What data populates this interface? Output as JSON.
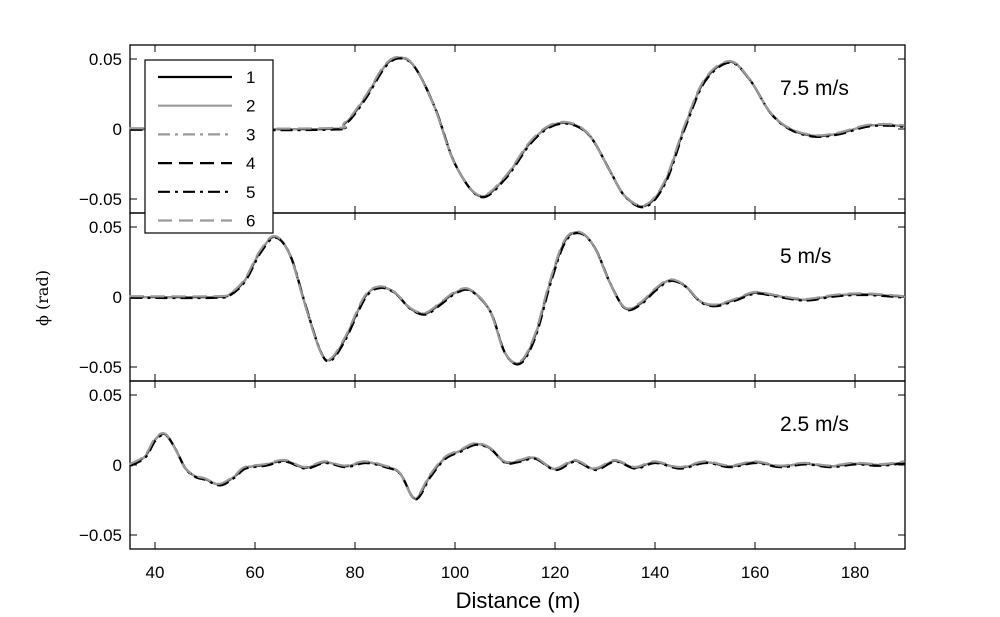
{
  "chart_data": {
    "type": "line",
    "xlabel": "Distance (m)",
    "ylabel": "ϕ (rad)",
    "xlim": [
      35,
      190
    ],
    "xticks": [
      40,
      60,
      80,
      100,
      120,
      140,
      160,
      180
    ],
    "ylim": [
      -0.06,
      0.06
    ],
    "yticks": [
      -0.05,
      0,
      0.05
    ],
    "ytick_labels": [
      "−0.05",
      "0",
      "0.05"
    ],
    "grid": false,
    "legend": {
      "placement": "top-left of top panel",
      "entries": [
        {
          "name": "1",
          "color": "#000000",
          "dash": "solid"
        },
        {
          "name": "2",
          "color": "#9a9a9a",
          "dash": "solid"
        },
        {
          "name": "3",
          "color": "#9a9a9a",
          "dash": "dashdot"
        },
        {
          "name": "4",
          "color": "#000000",
          "dash": "dashed"
        },
        {
          "name": "5",
          "color": "#000000",
          "dash": "dashdot"
        },
        {
          "name": "6",
          "color": "#9a9a9a",
          "dash": "dashed"
        }
      ]
    },
    "panels": [
      {
        "label": "7.5 m/s",
        "x": [
          35,
          74,
          78,
          82,
          86,
          89,
          92,
          96,
          100,
          105,
          110,
          115,
          119,
          123,
          127,
          131,
          134,
          138,
          142,
          146,
          150,
          155,
          159,
          163,
          167,
          172,
          177,
          182,
          186,
          190
        ],
        "y": [
          0,
          0,
          0.004,
          0.022,
          0.045,
          0.051,
          0.044,
          0.015,
          -0.025,
          -0.048,
          -0.035,
          -0.01,
          0.002,
          0.004,
          -0.005,
          -0.03,
          -0.048,
          -0.055,
          -0.038,
          0.002,
          0.035,
          0.048,
          0.035,
          0.012,
          0.0,
          -0.005,
          -0.003,
          0.002,
          0.003,
          0.002
        ]
      },
      {
        "label": "5 m/s",
        "x": [
          35,
          52,
          55,
          58,
          61,
          64,
          67,
          70,
          73,
          75,
          78,
          82,
          85,
          88,
          91,
          94,
          97,
          100,
          103,
          107,
          110,
          113,
          116,
          119,
          122,
          125,
          128,
          131,
          134,
          137,
          140,
          143,
          146,
          149,
          152,
          156,
          160,
          164,
          170,
          176,
          182,
          190
        ],
        "y": [
          0,
          0,
          0.002,
          0.012,
          0.032,
          0.043,
          0.03,
          -0.005,
          -0.038,
          -0.045,
          -0.03,
          0.0,
          0.007,
          0.003,
          -0.008,
          -0.012,
          -0.005,
          0.003,
          0.005,
          -0.01,
          -0.04,
          -0.047,
          -0.028,
          0.01,
          0.04,
          0.046,
          0.035,
          0.01,
          -0.008,
          -0.005,
          0.005,
          0.012,
          0.008,
          -0.003,
          -0.006,
          -0.002,
          0.003,
          0.001,
          -0.002,
          0.001,
          0.002,
          0.0
        ]
      },
      {
        "label": "2.5 m/s",
        "x": [
          35,
          38,
          40,
          42,
          44,
          46,
          48,
          50,
          53,
          56,
          58,
          62,
          66,
          70,
          74,
          78,
          82,
          86,
          89,
          92,
          95,
          98,
          101,
          104,
          107,
          110,
          113,
          116,
          120,
          124,
          128,
          132,
          136,
          140,
          145,
          150,
          155,
          160,
          165,
          170,
          175,
          180,
          185,
          190
        ],
        "y": [
          0,
          0.006,
          0.018,
          0.022,
          0.012,
          -0.002,
          -0.008,
          -0.01,
          -0.014,
          -0.008,
          -0.002,
          0.0,
          0.003,
          -0.002,
          0.002,
          -0.001,
          0.002,
          -0.001,
          -0.006,
          -0.024,
          -0.008,
          0.005,
          0.01,
          0.015,
          0.012,
          0.002,
          0.003,
          0.005,
          -0.003,
          0.003,
          -0.003,
          0.003,
          -0.002,
          0.002,
          -0.002,
          0.002,
          -0.001,
          0.002,
          -0.001,
          0.001,
          -0.001,
          0.001,
          0.0,
          0.002
        ]
      }
    ]
  }
}
